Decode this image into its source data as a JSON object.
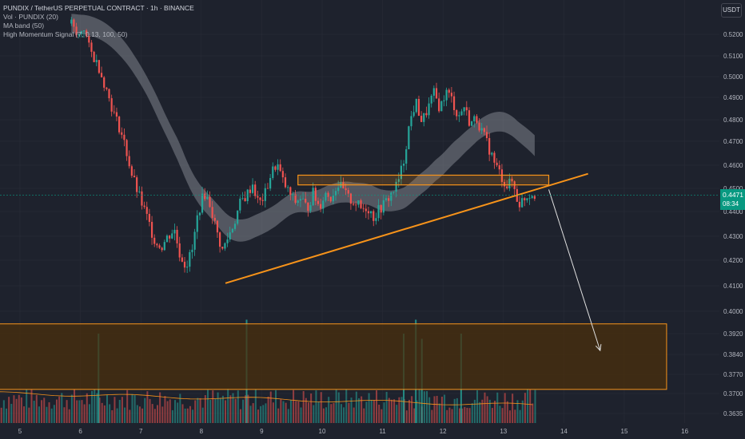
{
  "legend": {
    "symbol_line": "PUNDIX / TetherUS PERPETUAL CONTRACT · 1h · BINANCE",
    "vol_line": "Vol · PUNDIX (20)",
    "ma_line": "MA band (50)",
    "signal_line": "High Momentum Signal (7, 0.13, 100, 50)"
  },
  "currency_button": "USDT",
  "last_price": {
    "price": "0.4471",
    "countdown": "08:34"
  },
  "colors": {
    "background": "#1e222d",
    "up": "#26a69a",
    "down": "#ef5350",
    "trendline": "#f7931a",
    "zone_fill": "#4a2f0c",
    "ma_band": "#9598a1",
    "last_price_tag": "#089981",
    "arrow": "#e0e0e0"
  },
  "chart_data": {
    "type": "candlestick",
    "timeframe": "1h",
    "x_ticks": [
      "5",
      "6",
      "7",
      "8",
      "9",
      "10",
      "11",
      "12",
      "13",
      "14",
      "15",
      "16"
    ],
    "y_ticks": [
      "0.5200",
      "0.5100",
      "0.5000",
      "0.4900",
      "0.4800",
      "0.4700",
      "0.4600",
      "0.4500",
      "0.4400",
      "0.4300",
      "0.4200",
      "0.4100",
      "0.4000",
      "0.3920",
      "0.3840",
      "0.3770",
      "0.3700",
      "0.3635"
    ],
    "price_path": [
      [
        5.85,
        0.525
      ],
      [
        5.95,
        0.518
      ],
      [
        6.05,
        0.524
      ],
      [
        6.15,
        0.513
      ],
      [
        6.3,
        0.505
      ],
      [
        6.45,
        0.492
      ],
      [
        6.55,
        0.483
      ],
      [
        6.65,
        0.476
      ],
      [
        6.75,
        0.467
      ],
      [
        6.85,
        0.456
      ],
      [
        6.95,
        0.448
      ],
      [
        7.05,
        0.441
      ],
      [
        7.15,
        0.434
      ],
      [
        7.25,
        0.427
      ],
      [
        7.35,
        0.426
      ],
      [
        7.45,
        0.43
      ],
      [
        7.55,
        0.433
      ],
      [
        7.65,
        0.422
      ],
      [
        7.75,
        0.418
      ],
      [
        7.85,
        0.424
      ],
      [
        7.95,
        0.44
      ],
      [
        8.05,
        0.448
      ],
      [
        8.15,
        0.443
      ],
      [
        8.25,
        0.432
      ],
      [
        8.35,
        0.424
      ],
      [
        8.45,
        0.43
      ],
      [
        8.55,
        0.436
      ],
      [
        8.65,
        0.444
      ],
      [
        8.75,
        0.447
      ],
      [
        8.85,
        0.452
      ],
      [
        8.95,
        0.443
      ],
      [
        9.05,
        0.447
      ],
      [
        9.15,
        0.456
      ],
      [
        9.25,
        0.461
      ],
      [
        9.35,
        0.453
      ],
      [
        9.45,
        0.448
      ],
      [
        9.55,
        0.444
      ],
      [
        9.65,
        0.446
      ],
      [
        9.75,
        0.441
      ],
      [
        9.85,
        0.448
      ],
      [
        9.95,
        0.442
      ],
      [
        10.05,
        0.448
      ],
      [
        10.15,
        0.446
      ],
      [
        10.25,
        0.452
      ],
      [
        10.35,
        0.449
      ],
      [
        10.45,
        0.445
      ],
      [
        10.55,
        0.444
      ],
      [
        10.65,
        0.441
      ],
      [
        10.75,
        0.442
      ],
      [
        10.85,
        0.438
      ],
      [
        10.95,
        0.441
      ],
      [
        11.05,
        0.444
      ],
      [
        11.15,
        0.448
      ],
      [
        11.25,
        0.452
      ],
      [
        11.35,
        0.462
      ],
      [
        11.45,
        0.479
      ],
      [
        11.55,
        0.488
      ],
      [
        11.65,
        0.479
      ],
      [
        11.75,
        0.485
      ],
      [
        11.85,
        0.492
      ],
      [
        11.95,
        0.485
      ],
      [
        12.05,
        0.493
      ],
      [
        12.15,
        0.489
      ],
      [
        12.25,
        0.481
      ],
      [
        12.35,
        0.486
      ],
      [
        12.45,
        0.478
      ],
      [
        12.55,
        0.481
      ],
      [
        12.65,
        0.474
      ],
      [
        12.75,
        0.468
      ],
      [
        12.85,
        0.461
      ],
      [
        12.95,
        0.456
      ],
      [
        13.05,
        0.451
      ],
      [
        13.15,
        0.453
      ],
      [
        13.25,
        0.443
      ],
      [
        13.35,
        0.446
      ],
      [
        13.45,
        0.448
      ],
      [
        13.55,
        0.4471
      ]
    ],
    "volume_spikes": [
      [
        6.3,
        0.392
      ],
      [
        8.75,
        0.397
      ],
      [
        11.35,
        0.392
      ],
      [
        11.55,
        0.397
      ],
      [
        11.65,
        0.39
      ],
      [
        12.3,
        0.392
      ]
    ],
    "resistance_zone": {
      "x_start": 9.6,
      "x_end": 13.75,
      "y_low": 0.4515,
      "y_high": 0.4557
    },
    "ascending_trendline": {
      "from": [
        8.4,
        0.411
      ],
      "to": [
        14.4,
        0.4563
      ]
    },
    "demand_zone": {
      "x_start": 4.65,
      "x_end": 15.7,
      "y_low": 0.3715,
      "y_high": 0.3955
    },
    "projection_arrow": {
      "from": [
        13.75,
        0.4495
      ],
      "to": [
        14.6,
        0.3855
      ]
    },
    "last_price": 0.4471
  }
}
